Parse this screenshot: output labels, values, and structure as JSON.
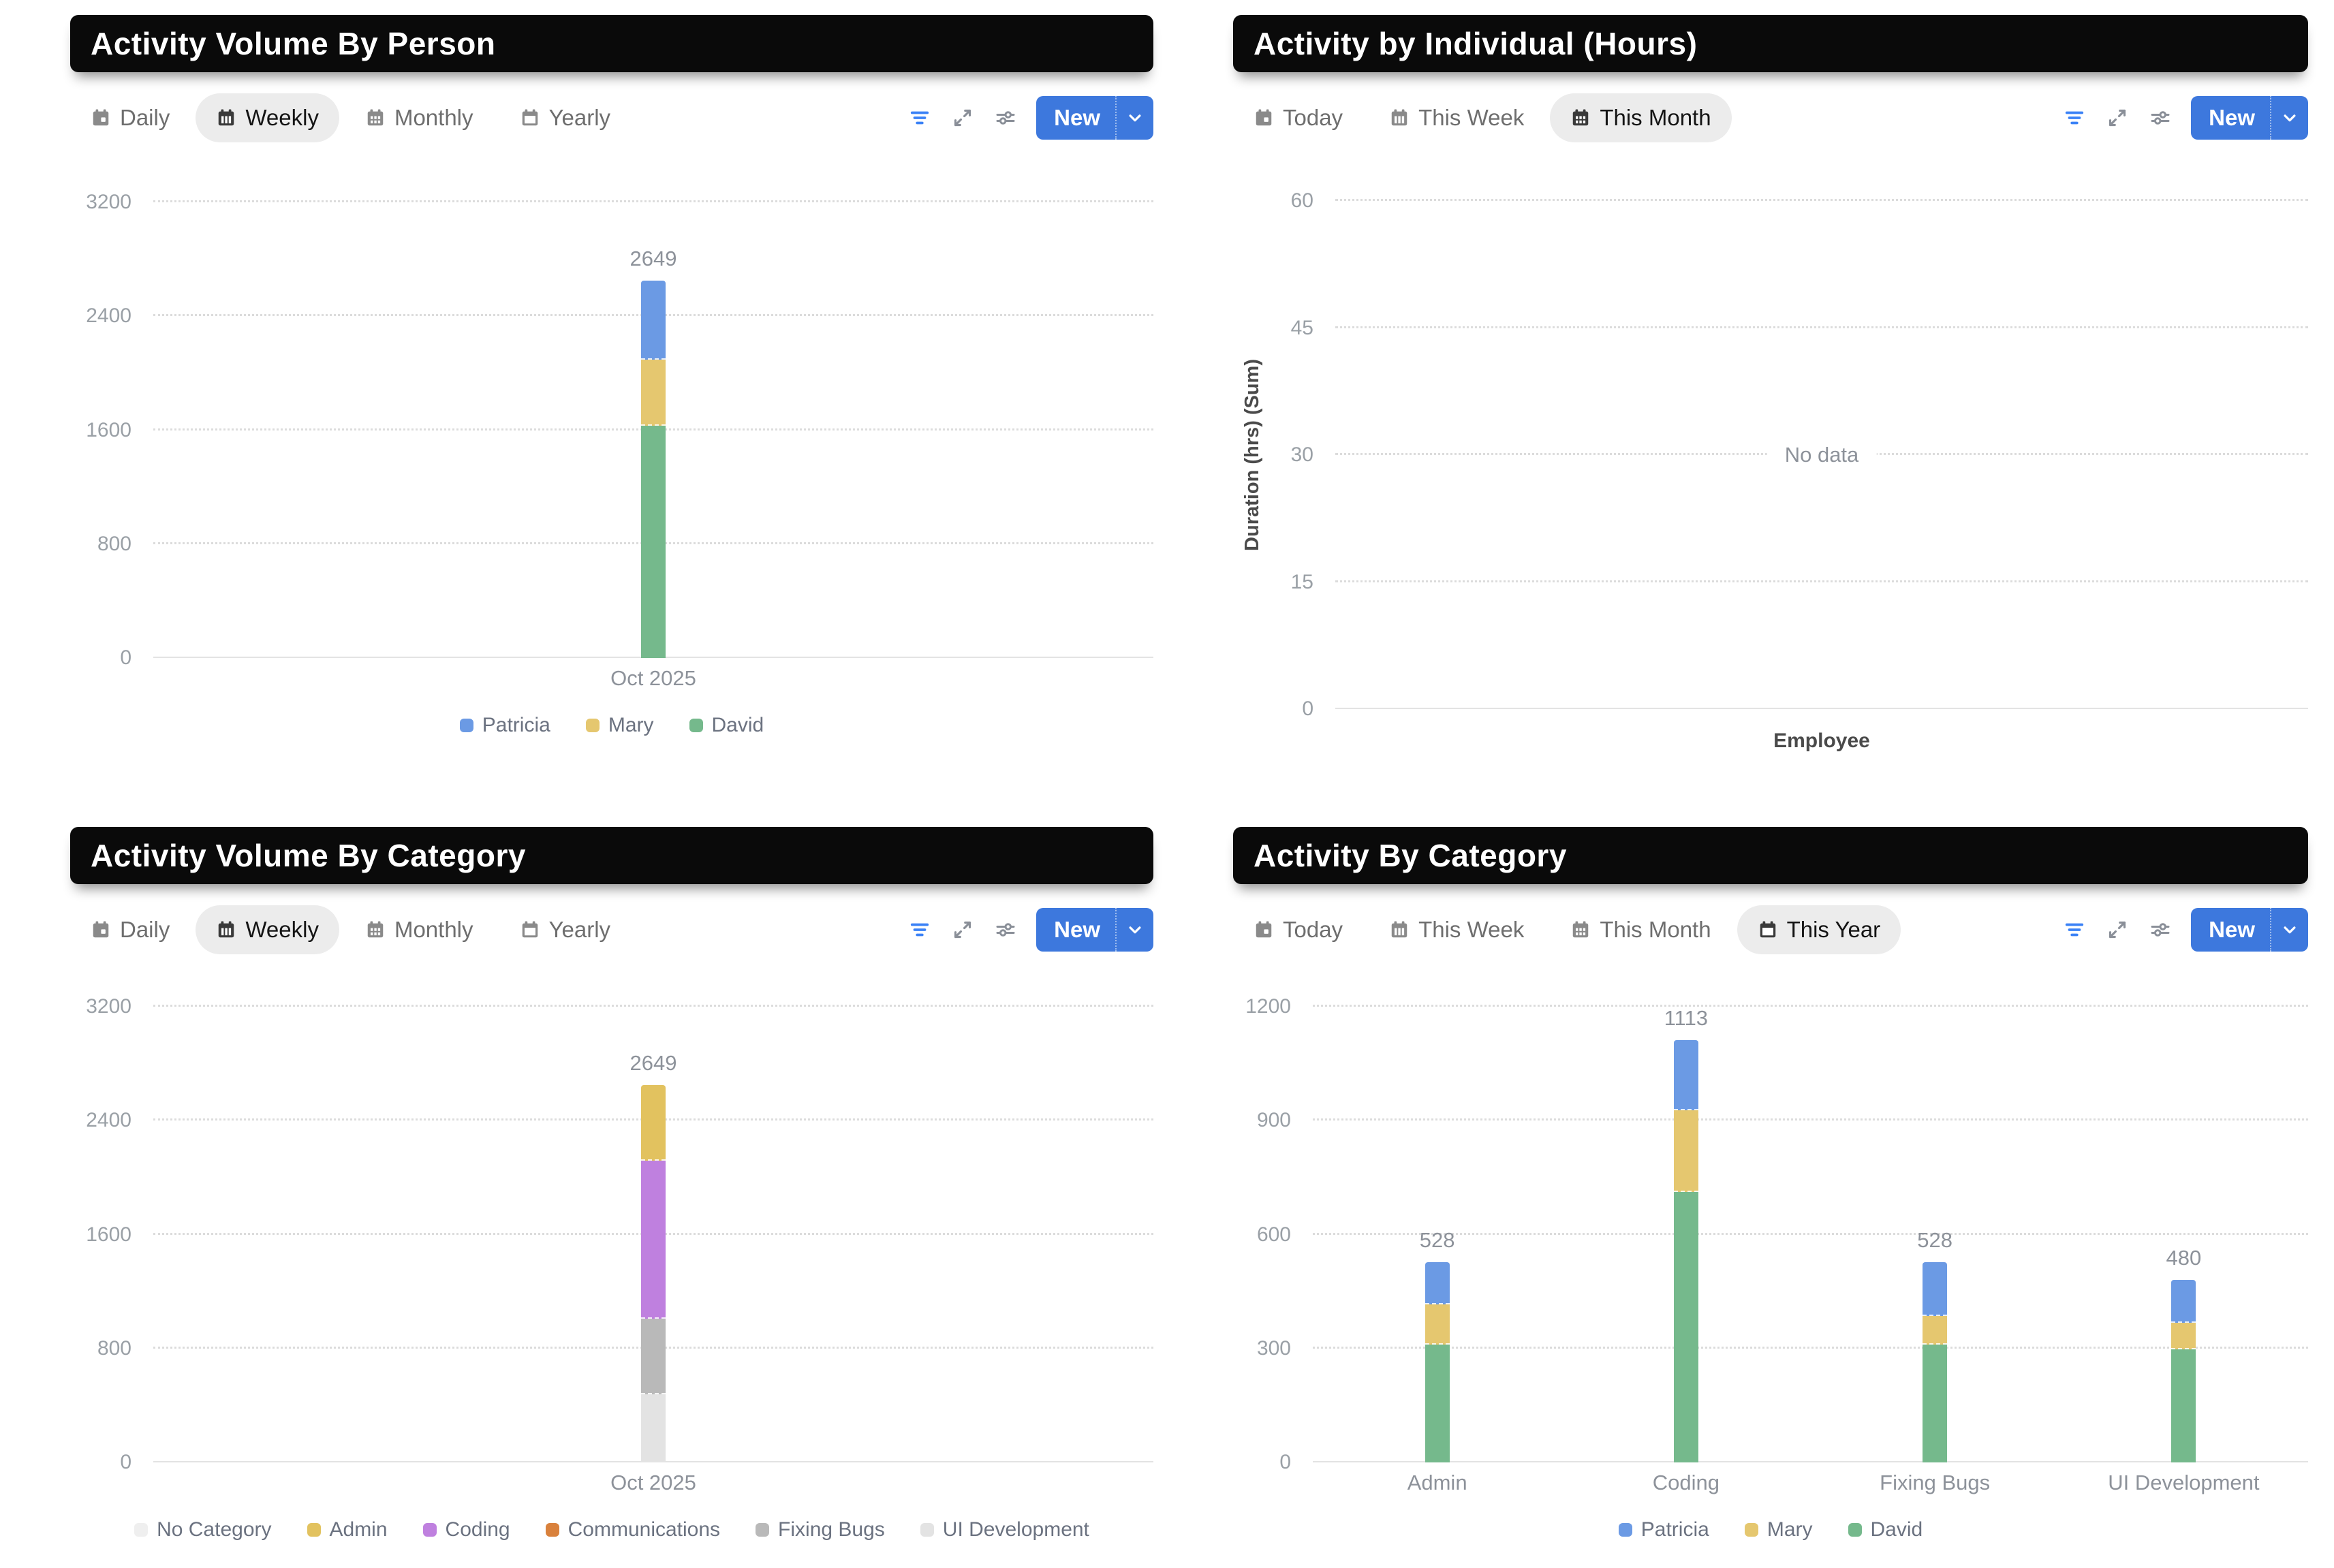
{
  "colors": {
    "accent_blue": "#3d78dd",
    "filter_icon_blue": "#3b82f6",
    "title_bar_bg": "#0a0a0a",
    "patricia": "#6b9ae4",
    "mary": "#e5c76f",
    "david": "#75b98c",
    "no_category": "#efefef",
    "admin": "#e2c25f",
    "coding": "#bf80df",
    "communications": "#d9813c",
    "fixing_bugs": "#b9b9b9",
    "ui_development": "#e3e3e3"
  },
  "icons": {
    "tabs": [
      "calendar-day-icon",
      "calendar-week-icon",
      "calendar-month-icon",
      "calendar-year-icon"
    ],
    "toolbar": [
      "filter-icon",
      "expand-icon",
      "sliders-icon",
      "chevron-down-icon"
    ]
  },
  "panels": [
    {
      "title": "Activity Volume By Person",
      "tabs": [
        {
          "label": "Daily",
          "icon": "calendar-day",
          "selected": false
        },
        {
          "label": "Weekly",
          "icon": "calendar-week",
          "selected": true
        },
        {
          "label": "Monthly",
          "icon": "calendar-month",
          "selected": false
        },
        {
          "label": "Yearly",
          "icon": "calendar-year",
          "selected": false
        }
      ],
      "controls": {
        "new_label": "New"
      },
      "chart_data": {
        "type": "bar",
        "stacked": true,
        "categories": [
          "Oct 2025"
        ],
        "series": [
          {
            "name": "Patricia",
            "color": "#6b9ae4",
            "values": [
              553
            ]
          },
          {
            "name": "Mary",
            "color": "#e5c76f",
            "values": [
              466
            ]
          },
          {
            "name": "David",
            "color": "#75b98c",
            "values": [
              1630
            ]
          }
        ],
        "totals": [
          2649
        ],
        "yticks": [
          0,
          800,
          1600,
          2400,
          3200
        ],
        "ylim": [
          0,
          3200
        ],
        "grid": "dotted",
        "legend_position": "bottom"
      }
    },
    {
      "title": "Activity by Individual (Hours)",
      "tabs": [
        {
          "label": "Today",
          "icon": "calendar-day",
          "selected": false
        },
        {
          "label": "This Week",
          "icon": "calendar-week",
          "selected": false
        },
        {
          "label": "This Month",
          "icon": "calendar-month",
          "selected": true
        }
      ],
      "controls": {
        "new_label": "New"
      },
      "chart_data": {
        "type": "bar",
        "stacked": true,
        "categories": [],
        "series": [],
        "totals": [],
        "yticks": [
          0,
          15,
          30,
          45,
          60
        ],
        "ylim": [
          0,
          60
        ],
        "ylabel": "Duration (hrs) (Sum)",
        "xlabel": "Employee",
        "no_data_text": "No data",
        "grid": "dotted"
      }
    },
    {
      "title": "Activity Volume By Category",
      "tabs": [
        {
          "label": "Daily",
          "icon": "calendar-day",
          "selected": false
        },
        {
          "label": "Weekly",
          "icon": "calendar-week",
          "selected": true
        },
        {
          "label": "Monthly",
          "icon": "calendar-month",
          "selected": false
        },
        {
          "label": "Yearly",
          "icon": "calendar-year",
          "selected": false
        }
      ],
      "controls": {
        "new_label": "New"
      },
      "chart_data": {
        "type": "bar",
        "stacked": true,
        "categories": [
          "Oct 2025"
        ],
        "series": [
          {
            "name": "No Category",
            "color": "#efefef",
            "values": [
              0
            ]
          },
          {
            "name": "Admin",
            "color": "#e2c25f",
            "values": [
              528
            ]
          },
          {
            "name": "Coding",
            "color": "#bf80df",
            "values": [
              1113
            ]
          },
          {
            "name": "Communications",
            "color": "#d9813c",
            "values": [
              0
            ]
          },
          {
            "name": "Fixing Bugs",
            "color": "#b9b9b9",
            "values": [
              528
            ]
          },
          {
            "name": "UI Development",
            "color": "#e3e3e3",
            "values": [
              480
            ]
          }
        ],
        "totals": [
          2649
        ],
        "yticks": [
          0,
          800,
          1600,
          2400,
          3200
        ],
        "ylim": [
          0,
          3200
        ],
        "grid": "dotted",
        "legend_position": "bottom"
      }
    },
    {
      "title": "Activity By Category",
      "tabs": [
        {
          "label": "Today",
          "icon": "calendar-day",
          "selected": false
        },
        {
          "label": "This Week",
          "icon": "calendar-week",
          "selected": false
        },
        {
          "label": "This Month",
          "icon": "calendar-month",
          "selected": false
        },
        {
          "label": "This Year",
          "icon": "calendar-year",
          "selected": true
        }
      ],
      "controls": {
        "new_label": "New"
      },
      "chart_data": {
        "type": "bar",
        "stacked": true,
        "categories": [
          "Admin",
          "Coding",
          "Fixing Bugs",
          "UI Development"
        ],
        "series": [
          {
            "name": "Patricia",
            "color": "#6b9ae4",
            "values": [
              112,
              185,
              143,
              113
            ]
          },
          {
            "name": "Mary",
            "color": "#e5c76f",
            "values": [
              106,
              215,
              75,
              70
            ]
          },
          {
            "name": "David",
            "color": "#75b98c",
            "values": [
              310,
              713,
              310,
              297
            ]
          }
        ],
        "totals": [
          528,
          1113,
          528,
          480
        ],
        "yticks": [
          0,
          300,
          600,
          900,
          1200
        ],
        "ylim": [
          0,
          1200
        ],
        "grid": "dotted",
        "legend_position": "bottom"
      }
    }
  ]
}
